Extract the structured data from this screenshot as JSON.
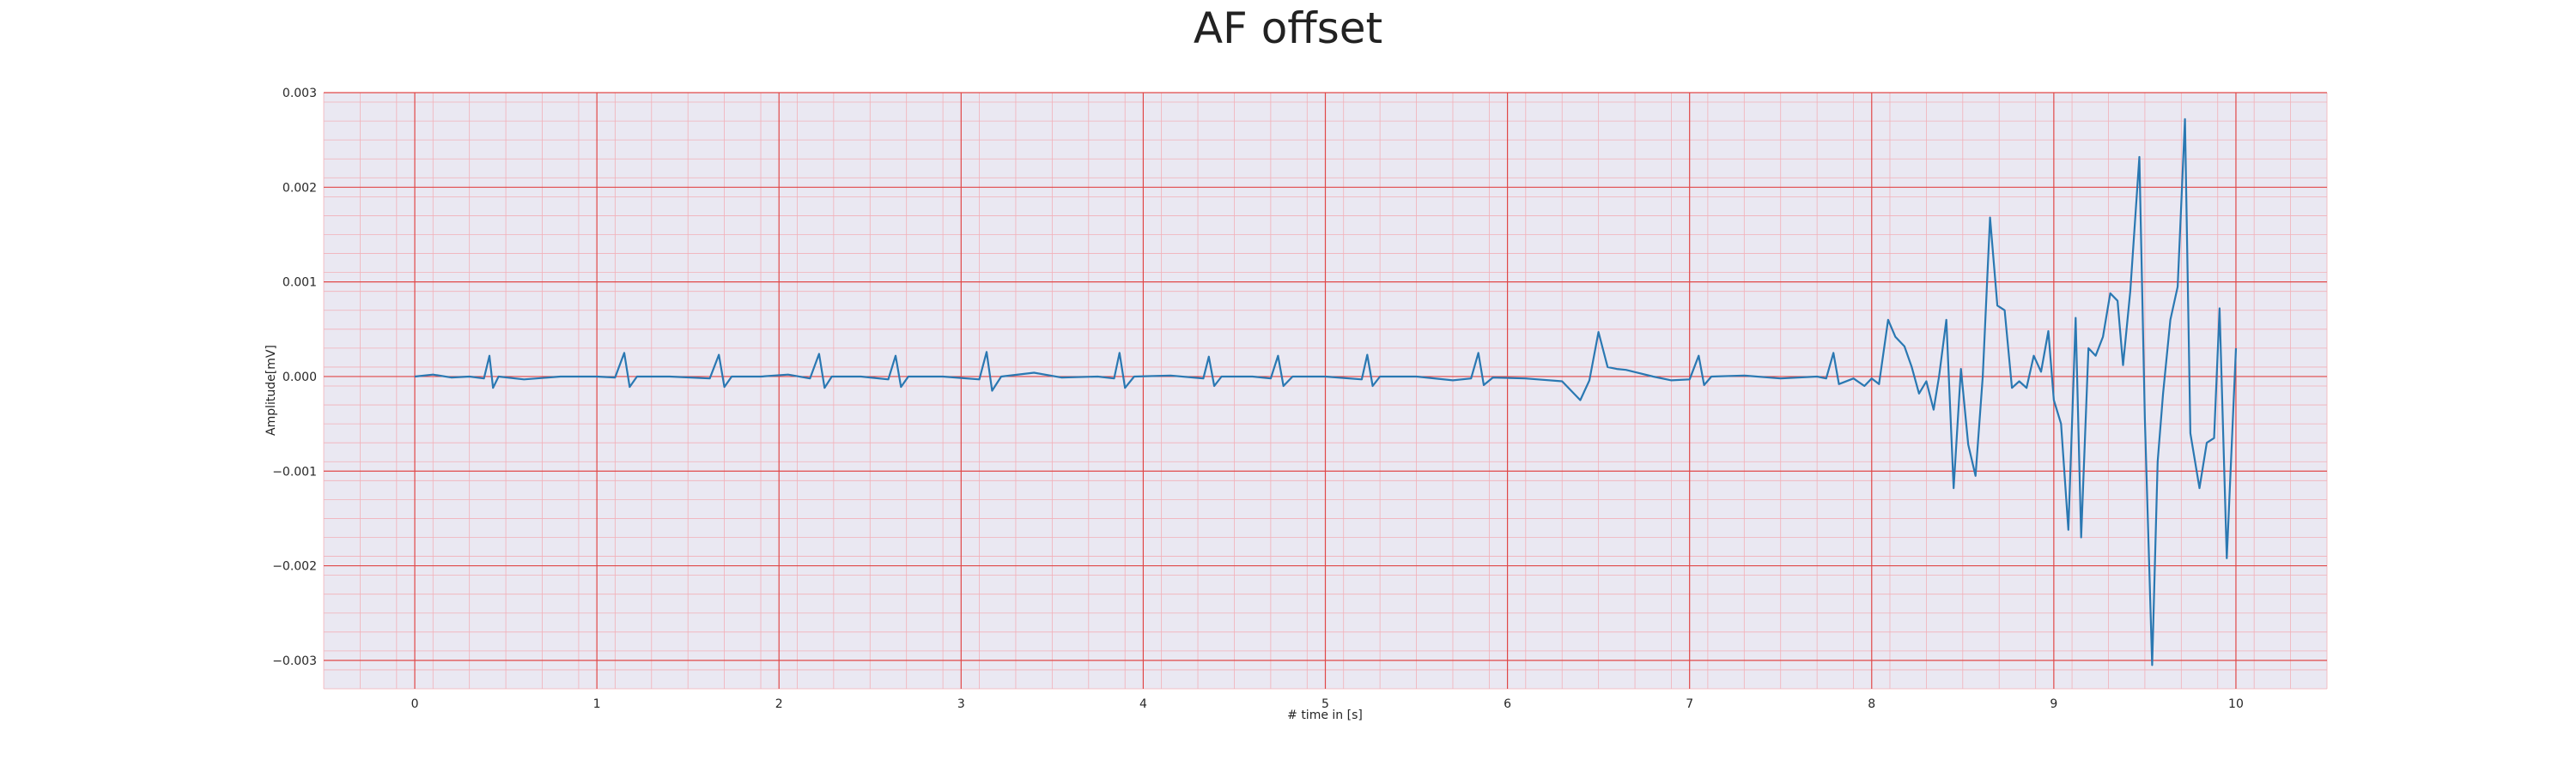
{
  "chart_data": {
    "type": "line",
    "title": "AF offset",
    "xlabel": "# time in [s]",
    "ylabel": "Amplitude[mV]",
    "xlim": [
      -0.5,
      10.5
    ],
    "ylim": [
      -0.0033,
      0.003
    ],
    "x_ticks": [
      0,
      1,
      2,
      3,
      4,
      5,
      6,
      7,
      8,
      9,
      10
    ],
    "x_tick_labels": [
      "0",
      "1",
      "2",
      "3",
      "4",
      "5",
      "6",
      "7",
      "8",
      "9",
      "10"
    ],
    "y_ticks": [
      0.003,
      0.002,
      0.001,
      0.0,
      -0.001,
      -0.002,
      -0.003
    ],
    "y_tick_labels": [
      "0.003",
      "0.002",
      "0.001",
      "0.000",
      "−0.001",
      "−0.002",
      "−0.003"
    ],
    "grid": "major and minor (ECG paper)",
    "colors": {
      "line": "#2a78b2",
      "background": "#eae8f2",
      "major_grid": "#e04848",
      "minor_grid": "#f2b0b8"
    },
    "series": [
      {
        "values": [
          [
            0.0,
            0.0
          ],
          [
            0.1,
            2e-05
          ],
          [
            0.2,
            -1e-05
          ],
          [
            0.3,
            0.0
          ],
          [
            0.38,
            -2e-05
          ],
          [
            0.41,
            0.00022
          ],
          [
            0.43,
            -0.00012
          ],
          [
            0.46,
            0.0
          ],
          [
            0.6,
            -3e-05
          ],
          [
            0.8,
            0.0
          ],
          [
            1.0,
            0.0
          ],
          [
            1.1,
            -1e-05
          ],
          [
            1.15,
            0.00025
          ],
          [
            1.18,
            -0.00011
          ],
          [
            1.22,
            0.0
          ],
          [
            1.4,
            0.0
          ],
          [
            1.62,
            -2e-05
          ],
          [
            1.67,
            0.00023
          ],
          [
            1.7,
            -0.00011
          ],
          [
            1.74,
            0.0
          ],
          [
            1.9,
            0.0
          ],
          [
            2.05,
            2e-05
          ],
          [
            2.17,
            -2e-05
          ],
          [
            2.22,
            0.00024
          ],
          [
            2.25,
            -0.00012
          ],
          [
            2.29,
            0.0
          ],
          [
            2.45,
            0.0
          ],
          [
            2.6,
            -3e-05
          ],
          [
            2.64,
            0.00022
          ],
          [
            2.67,
            -0.00011
          ],
          [
            2.71,
            0.0
          ],
          [
            2.9,
            0.0
          ],
          [
            3.1,
            -3e-05
          ],
          [
            3.14,
            0.00026
          ],
          [
            3.17,
            -0.00015
          ],
          [
            3.22,
            0.0
          ],
          [
            3.4,
            4e-05
          ],
          [
            3.55,
            -1e-05
          ],
          [
            3.75,
            0.0
          ],
          [
            3.84,
            -2e-05
          ],
          [
            3.87,
            0.00025
          ],
          [
            3.9,
            -0.00012
          ],
          [
            3.95,
            0.0
          ],
          [
            4.15,
            1e-05
          ],
          [
            4.33,
            -2e-05
          ],
          [
            4.36,
            0.00021
          ],
          [
            4.39,
            -0.0001
          ],
          [
            4.43,
            0.0
          ],
          [
            4.6,
            0.0
          ],
          [
            4.7,
            -2e-05
          ],
          [
            4.74,
            0.00022
          ],
          [
            4.77,
            -0.0001
          ],
          [
            4.82,
            0.0
          ],
          [
            5.0,
            0.0
          ],
          [
            5.2,
            -3e-05
          ],
          [
            5.23,
            0.00023
          ],
          [
            5.26,
            -0.0001
          ],
          [
            5.3,
            0.0
          ],
          [
            5.5,
            0.0
          ],
          [
            5.7,
            -4e-05
          ],
          [
            5.8,
            -2e-05
          ],
          [
            5.84,
            0.00025
          ],
          [
            5.87,
            -9e-05
          ],
          [
            5.92,
            -1e-05
          ],
          [
            6.1,
            -2e-05
          ],
          [
            6.3,
            -5e-05
          ],
          [
            6.4,
            -0.00025
          ],
          [
            6.45,
            -4e-05
          ],
          [
            6.5,
            0.00047
          ],
          [
            6.55,
            0.0001
          ],
          [
            6.6,
            8e-05
          ],
          [
            6.65,
            7e-05
          ],
          [
            6.8,
            0.0
          ],
          [
            6.9,
            -4e-05
          ],
          [
            7.0,
            -3e-05
          ],
          [
            7.05,
            0.00022
          ],
          [
            7.08,
            -9e-05
          ],
          [
            7.12,
            0.0
          ],
          [
            7.3,
            1e-05
          ],
          [
            7.5,
            -2e-05
          ],
          [
            7.7,
            0.0
          ],
          [
            7.75,
            -2e-05
          ],
          [
            7.79,
            0.00025
          ],
          [
            7.82,
            -8e-05
          ],
          [
            7.9,
            -2e-05
          ],
          [
            7.96,
            -0.0001
          ],
          [
            8.0,
            -2e-05
          ],
          [
            8.04,
            -8e-05
          ],
          [
            8.09,
            0.0006
          ],
          [
            8.13,
            0.00042
          ],
          [
            8.18,
            0.00032
          ],
          [
            8.22,
            0.0001
          ],
          [
            8.26,
            -0.00018
          ],
          [
            8.3,
            -5e-05
          ],
          [
            8.34,
            -0.00035
          ],
          [
            8.37,
            0.0
          ],
          [
            8.41,
            0.0006
          ],
          [
            8.45,
            -0.00118
          ],
          [
            8.49,
            8e-05
          ],
          [
            8.53,
            -0.00072
          ],
          [
            8.57,
            -0.00105
          ],
          [
            8.61,
            0.0
          ],
          [
            8.65,
            0.00168
          ],
          [
            8.69,
            0.00075
          ],
          [
            8.73,
            0.0007
          ],
          [
            8.77,
            -0.00012
          ],
          [
            8.81,
            -5e-05
          ],
          [
            8.85,
            -0.00012
          ],
          [
            8.89,
            0.00022
          ],
          [
            8.93,
            5e-05
          ],
          [
            8.97,
            0.00048
          ],
          [
            9.0,
            -0.00025
          ],
          [
            9.04,
            -0.0005
          ],
          [
            9.08,
            -0.00162
          ],
          [
            9.12,
            0.00062
          ],
          [
            9.15,
            -0.0017
          ],
          [
            9.19,
            0.0003
          ],
          [
            9.23,
            0.00022
          ],
          [
            9.27,
            0.00042
          ],
          [
            9.31,
            0.00088
          ],
          [
            9.35,
            0.0008
          ],
          [
            9.38,
            0.00012
          ],
          [
            9.42,
            0.0009
          ],
          [
            9.47,
            0.00232
          ],
          [
            9.5,
            -0.00045
          ],
          [
            9.54,
            -0.00305
          ],
          [
            9.57,
            -0.0009
          ],
          [
            9.6,
            -0.00018
          ],
          [
            9.64,
            0.0006
          ],
          [
            9.68,
            0.00095
          ],
          [
            9.72,
            0.00272
          ],
          [
            9.75,
            -0.0006
          ],
          [
            9.8,
            -0.00118
          ],
          [
            9.84,
            -0.0007
          ],
          [
            9.88,
            -0.00065
          ],
          [
            9.91,
            0.00072
          ],
          [
            9.95,
            -0.00192
          ],
          [
            10.0,
            0.0003
          ]
        ]
      }
    ]
  }
}
